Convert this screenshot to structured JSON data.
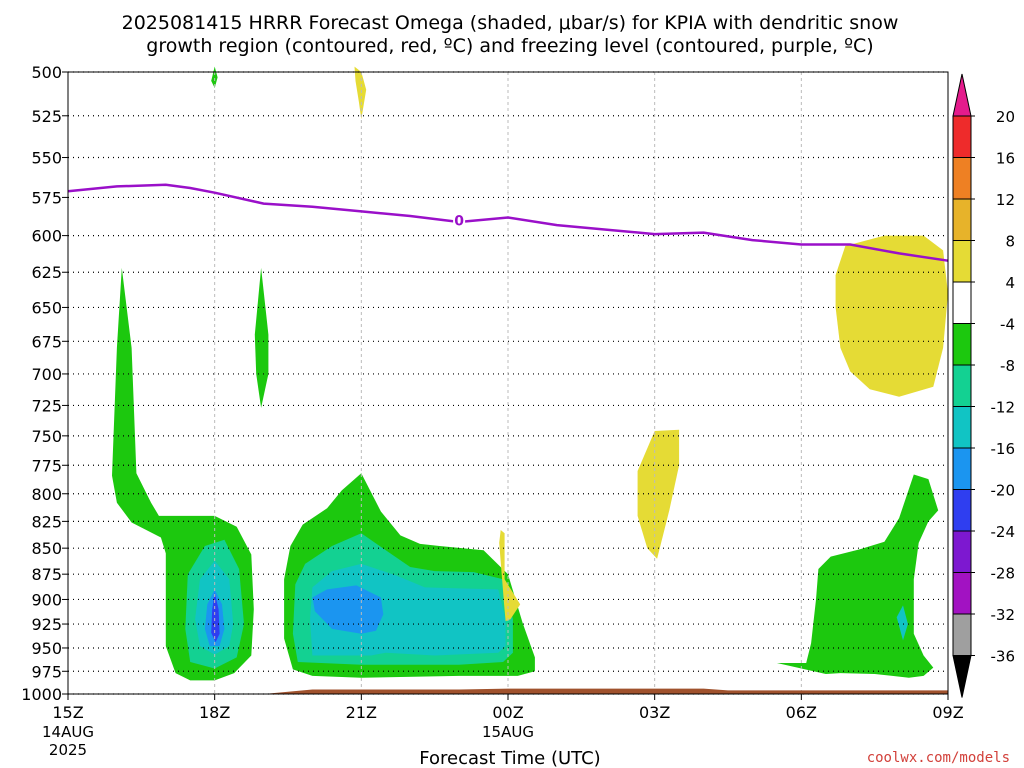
{
  "chart_data": {
    "type": "heatmap",
    "title_line1": "2025081415 HRRR Forecast Omega (shaded, μbar/s) for KPIA with dendritic snow",
    "title_line2": "growth region (contoured, red, ºC) and freezing level (contoured, purple, ºC)",
    "xlabel": "Forecast Time (UTC)",
    "credit": "coolwx.com/models",
    "x_ticks": [
      {
        "h": 0,
        "label": "15Z",
        "sub1": "14AUG",
        "sub2": "2025"
      },
      {
        "h": 3,
        "label": "18Z",
        "sub1": "",
        "sub2": ""
      },
      {
        "h": 6,
        "label": "21Z",
        "sub1": "",
        "sub2": ""
      },
      {
        "h": 9,
        "label": "00Z",
        "sub1": "15AUG",
        "sub2": ""
      },
      {
        "h": 12,
        "label": "03Z",
        "sub1": "",
        "sub2": ""
      },
      {
        "h": 15,
        "label": "06Z",
        "sub1": "",
        "sub2": ""
      },
      {
        "h": 18,
        "label": "09Z",
        "sub1": "",
        "sub2": ""
      }
    ],
    "xlim": [
      0,
      18
    ],
    "ylim": [
      1000,
      500
    ],
    "y_ticks": [
      500,
      525,
      550,
      575,
      600,
      625,
      650,
      675,
      700,
      725,
      750,
      775,
      800,
      825,
      850,
      875,
      900,
      925,
      950,
      975,
      1000
    ],
    "grid": true,
    "colorbar": {
      "labels": [
        20,
        16,
        12,
        8,
        4,
        -4,
        -8,
        -12,
        -16,
        -20,
        -24,
        -28,
        -32,
        -36
      ],
      "colors": [
        "#e41b8c",
        "#ee2b2b",
        "#ee8023",
        "#e7b32a",
        "#e5db35",
        "#ffffff",
        "#1cc80e",
        "#13d192",
        "#11c4c4",
        "#1b95f0",
        "#2f3ef0",
        "#7d18d0",
        "#a212c2",
        "#9f9f9f",
        "#000000"
      ]
    },
    "freezing_level": {
      "label": "0",
      "color": "#9a10c9",
      "points": [
        [
          0,
          571
        ],
        [
          1,
          568
        ],
        [
          2,
          567
        ],
        [
          2.5,
          569
        ],
        [
          3,
          572
        ],
        [
          4,
          579
        ],
        [
          5,
          581
        ],
        [
          6,
          584
        ],
        [
          7,
          587
        ],
        [
          8,
          591
        ],
        [
          9,
          588
        ],
        [
          10,
          593
        ],
        [
          11,
          596
        ],
        [
          12,
          599
        ],
        [
          13,
          598
        ],
        [
          14,
          603
        ],
        [
          15,
          606
        ],
        [
          16,
          606
        ],
        [
          17,
          612
        ],
        [
          18,
          617
        ]
      ]
    },
    "omega_regions": [
      {
        "value": "-8 to -4",
        "color": "#1cc80e",
        "points": [
          [
            0.9,
            784
          ],
          [
            1.0,
            680
          ],
          [
            1.1,
            622
          ],
          [
            1.3,
            680
          ],
          [
            1.4,
            782
          ],
          [
            1.7,
            808
          ],
          [
            1.86,
            820
          ],
          [
            3.0,
            820
          ],
          [
            3.45,
            830
          ],
          [
            3.75,
            856
          ],
          [
            3.8,
            910
          ],
          [
            3.75,
            958
          ],
          [
            3.4,
            977
          ],
          [
            3.0,
            985
          ],
          [
            2.5,
            985
          ],
          [
            2.2,
            977
          ],
          [
            2.0,
            948
          ],
          [
            2.0,
            855
          ],
          [
            1.9,
            840
          ],
          [
            1.3,
            826
          ],
          [
            1.0,
            808
          ]
        ]
      },
      {
        "value": "-8 to -4",
        "color": "#1cc80e",
        "points": [
          [
            3.95,
            727
          ],
          [
            3.85,
            700
          ],
          [
            3.82,
            670
          ],
          [
            3.95,
            622
          ],
          [
            4.1,
            670
          ],
          [
            4.1,
            700
          ]
        ]
      },
      {
        "value": "-8 to -4",
        "color": "#1cc80e",
        "points": [
          [
            4.6,
            973
          ],
          [
            4.42,
            940
          ],
          [
            4.42,
            880
          ],
          [
            4.55,
            848
          ],
          [
            4.8,
            828
          ],
          [
            5.3,
            813
          ],
          [
            5.6,
            797
          ],
          [
            6.0,
            782
          ],
          [
            6.4,
            816
          ],
          [
            6.8,
            838
          ],
          [
            7.2,
            846
          ],
          [
            7.6,
            848
          ],
          [
            8.5,
            852
          ],
          [
            9.0,
            875
          ],
          [
            9.3,
            924
          ],
          [
            9.55,
            960
          ],
          [
            9.55,
            975
          ],
          [
            9.2,
            980
          ],
          [
            8.0,
            980
          ],
          [
            6.0,
            982
          ],
          [
            5.0,
            980
          ]
        ]
      },
      {
        "value": "-8 to -4",
        "color": "#1cc80e",
        "points": [
          [
            14.5,
            966
          ],
          [
            15.1,
            966
          ],
          [
            15.2,
            945
          ],
          [
            15.3,
            900
          ],
          [
            15.35,
            870
          ],
          [
            15.6,
            858
          ],
          [
            16.2,
            851
          ],
          [
            16.7,
            844
          ],
          [
            17.0,
            822
          ],
          [
            17.3,
            783
          ],
          [
            17.6,
            787
          ],
          [
            17.8,
            815
          ],
          [
            17.6,
            825
          ],
          [
            17.4,
            845
          ],
          [
            17.3,
            880
          ],
          [
            17.3,
            935
          ],
          [
            17.5,
            958
          ],
          [
            17.7,
            971
          ],
          [
            17.5,
            980
          ],
          [
            17.2,
            982
          ],
          [
            16.5,
            978
          ],
          [
            15.8,
            977
          ],
          [
            15.5,
            978
          ]
        ]
      },
      {
        "value": "-8 to -4",
        "color": "#1cc80e",
        "points": [
          [
            2.93,
            505
          ],
          [
            3.0,
            497
          ],
          [
            3.06,
            503
          ],
          [
            3.0,
            509
          ]
        ]
      },
      {
        "value": "-12 to -8",
        "color": "#13d192",
        "points": [
          [
            2.45,
            875
          ],
          [
            2.8,
            848
          ],
          [
            3.2,
            842
          ],
          [
            3.5,
            870
          ],
          [
            3.6,
            925
          ],
          [
            3.45,
            960
          ],
          [
            3.0,
            972
          ],
          [
            2.5,
            965
          ],
          [
            2.4,
            930
          ]
        ]
      },
      {
        "value": "-12 to -8",
        "color": "#13d192",
        "points": [
          [
            4.7,
            965
          ],
          [
            4.6,
            935
          ],
          [
            4.65,
            885
          ],
          [
            4.85,
            865
          ],
          [
            5.4,
            848
          ],
          [
            6.0,
            836
          ],
          [
            6.5,
            852
          ],
          [
            7.0,
            868
          ],
          [
            7.5,
            872
          ],
          [
            8.3,
            873
          ],
          [
            8.9,
            880
          ],
          [
            9.1,
            920
          ],
          [
            9.1,
            955
          ],
          [
            8.9,
            965
          ],
          [
            8.0,
            968
          ],
          [
            6.0,
            968
          ]
        ]
      },
      {
        "value": "-16 to -12",
        "color": "#11c4c4",
        "points": [
          [
            2.7,
            880
          ],
          [
            3.0,
            862
          ],
          [
            3.3,
            880
          ],
          [
            3.38,
            925
          ],
          [
            3.3,
            948
          ],
          [
            3.0,
            957
          ],
          [
            2.7,
            948
          ],
          [
            2.6,
            920
          ]
        ]
      },
      {
        "value": "-16 to -12",
        "color": "#11c4c4",
        "points": [
          [
            5.0,
            958
          ],
          [
            4.95,
            920
          ],
          [
            5.0,
            888
          ],
          [
            5.4,
            872
          ],
          [
            6.0,
            865
          ],
          [
            6.7,
            876
          ],
          [
            7.3,
            888
          ],
          [
            8.0,
            889
          ],
          [
            8.8,
            890
          ],
          [
            8.95,
            920
          ],
          [
            8.95,
            948
          ],
          [
            8.8,
            955
          ],
          [
            7.5,
            958
          ],
          [
            6.5,
            955
          ],
          [
            6.2,
            958
          ]
        ]
      },
      {
        "value": "-16 to -12",
        "color": "#11c4c4",
        "points": [
          [
            16.95,
            918
          ],
          [
            17.08,
            906
          ],
          [
            17.18,
            925
          ],
          [
            17.08,
            942
          ]
        ]
      },
      {
        "value": "-20 to -16",
        "color": "#1b95f0",
        "points": [
          [
            2.85,
            905
          ],
          [
            3.0,
            890
          ],
          [
            3.15,
            905
          ],
          [
            3.2,
            930
          ],
          [
            3.1,
            948
          ],
          [
            2.9,
            948
          ],
          [
            2.8,
            930
          ]
        ]
      },
      {
        "value": "-20 to -16",
        "color": "#1b95f0",
        "points": [
          [
            5.05,
            912
          ],
          [
            5.0,
            898
          ],
          [
            5.3,
            890
          ],
          [
            5.9,
            886
          ],
          [
            6.4,
            898
          ],
          [
            6.45,
            915
          ],
          [
            6.3,
            932
          ],
          [
            6.0,
            935
          ],
          [
            5.4,
            930
          ]
        ]
      },
      {
        "value": "-24 to -20",
        "color": "#2f3ef0",
        "points": [
          [
            2.95,
            910
          ],
          [
            3.0,
            893
          ],
          [
            3.08,
            910
          ],
          [
            3.1,
            935
          ],
          [
            3.02,
            944
          ],
          [
            2.93,
            934
          ]
        ]
      },
      {
        "value": "4 to 8",
        "color": "#e5db35",
        "points": [
          [
            5.86,
            497
          ],
          [
            6.0,
            500
          ],
          [
            6.05,
            505
          ],
          [
            6.1,
            510
          ],
          [
            6.0,
            527
          ],
          [
            5.95,
            517
          ],
          [
            5.88,
            505
          ]
        ]
      },
      {
        "value": "4 to 8",
        "color": "#e5db35",
        "points": [
          [
            15.7,
            627
          ],
          [
            15.9,
            607
          ],
          [
            16.7,
            600
          ],
          [
            17.5,
            600
          ],
          [
            17.9,
            610
          ],
          [
            18.0,
            640
          ],
          [
            17.9,
            680
          ],
          [
            17.7,
            710
          ],
          [
            17.0,
            718
          ],
          [
            16.4,
            712
          ],
          [
            16.0,
            698
          ],
          [
            15.8,
            680
          ],
          [
            15.7,
            650
          ]
        ]
      },
      {
        "value": "4 to 8",
        "color": "#e5db35",
        "points": [
          [
            11.65,
            780
          ],
          [
            12.0,
            746
          ],
          [
            12.5,
            745
          ],
          [
            12.5,
            775
          ],
          [
            12.3,
            815
          ],
          [
            12.05,
            860
          ],
          [
            11.85,
            850
          ],
          [
            11.65,
            820
          ]
        ]
      },
      {
        "value": "4 to 8",
        "color": "#e5db35",
        "points": [
          [
            8.85,
            833
          ],
          [
            8.93,
            836
          ],
          [
            8.93,
            880
          ],
          [
            9.25,
            905
          ],
          [
            9.05,
            920
          ],
          [
            8.95,
            922
          ],
          [
            8.92,
            905
          ],
          [
            8.88,
            880
          ],
          [
            8.82,
            845
          ]
        ]
      }
    ],
    "terrain": {
      "color": "#a0522d",
      "points": [
        [
          0,
          1000
        ],
        [
          4,
          1000
        ],
        [
          5,
          995
        ],
        [
          8,
          995
        ],
        [
          9,
          994
        ],
        [
          11,
          994
        ],
        [
          13,
          994
        ],
        [
          13.5,
          996
        ],
        [
          18,
          996
        ]
      ]
    }
  }
}
